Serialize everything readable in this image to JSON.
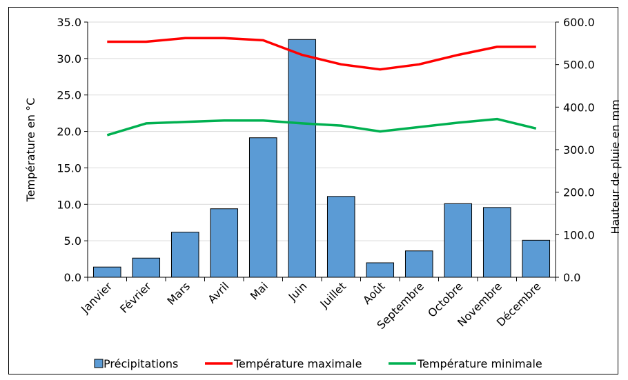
{
  "chart_data": {
    "type": "bar",
    "categories": [
      "Janvier",
      "Février",
      "Mars",
      "Avril",
      "Mai",
      "Juin",
      "Juillet",
      "Août",
      "Septembre",
      "Octobre",
      "Novembre",
      "Décembre"
    ],
    "ylabel_left": "Température  en °C",
    "ylabel_right": "Hauteur de pluie  en mm",
    "ylim_left": [
      0,
      35
    ],
    "ylim_right": [
      0,
      600
    ],
    "yticks_left": [
      "0.0",
      "5.0",
      "10.0",
      "15.0",
      "20.0",
      "25.0",
      "30.0",
      "35.0"
    ],
    "yticks_right": [
      "0.0",
      "100.0",
      "200.0",
      "300.0",
      "400.0",
      "500.0",
      "600.0"
    ],
    "grid": true,
    "legend_position": "bottom",
    "series": [
      {
        "name": "Précipitations",
        "type": "bar",
        "axis": "right",
        "color": "#5b9bd5",
        "values": [
          24,
          45,
          106,
          161,
          328,
          559,
          190,
          34,
          62,
          173,
          164,
          87
        ]
      },
      {
        "name": "Température maximale",
        "type": "line",
        "axis": "left",
        "color": "#ff0000",
        "values": [
          32.3,
          32.3,
          32.8,
          32.8,
          32.5,
          30.5,
          29.2,
          28.5,
          29.2,
          30.5,
          31.6,
          31.6
        ]
      },
      {
        "name": "Température minimale",
        "type": "line",
        "axis": "left",
        "color": "#00b050",
        "values": [
          19.5,
          21.1,
          21.3,
          21.5,
          21.5,
          21.1,
          20.8,
          20.0,
          20.6,
          21.2,
          21.7,
          20.4
        ]
      }
    ]
  }
}
